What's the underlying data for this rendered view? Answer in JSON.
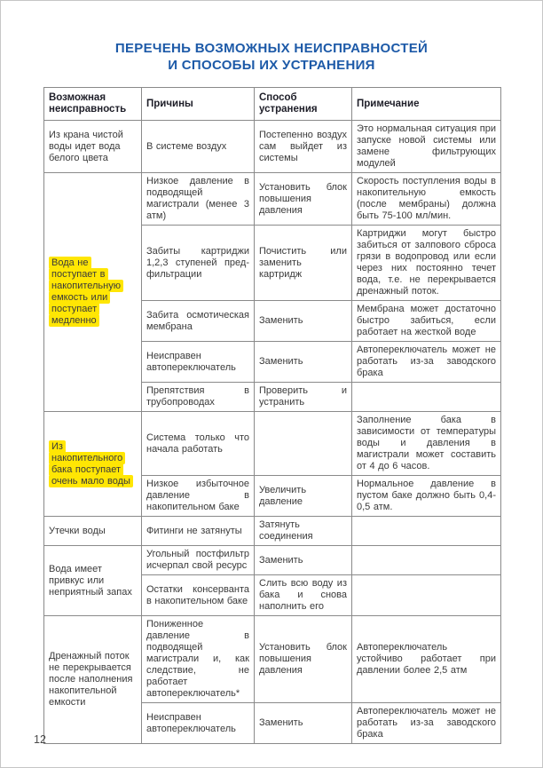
{
  "page": {
    "title_line1": "ПЕРЕЧЕНЬ ВОЗМОЖНЫХ НЕИСПРАВНОСТЕЙ",
    "title_line2": "И СПОСОБЫ ИХ УСТРАНЕНИЯ",
    "page_number": "12",
    "title_color": "#1d5aa8",
    "highlight_color": "#ffe604",
    "text_color": "#3a3a3a",
    "border_color": "#8a8a8a"
  },
  "table": {
    "headers": [
      "Возможная неисправность",
      "Причины",
      "Способ устранения",
      "Примечание"
    ],
    "groups": [
      {
        "fault": "Из крана чистой воды идет вода белого цвета",
        "highlight": false,
        "heights": [
          43
        ],
        "rows": [
          {
            "cause": "В системе воздух",
            "fix": "Постепенно воздух сам выйдет из системы",
            "note": "Это нормальная ситуация при запуске новой системы или замене фильтрующих модулей"
          }
        ]
      },
      {
        "fault": "Вода не поступает в накопительную емкость или поступает медленно",
        "highlight": true,
        "heights": [
          56,
          78,
          39,
          39,
          27
        ],
        "rows": [
          {
            "cause": "Низкое давление в подводящей магистрали (менее 3 атм)",
            "fix": "Установить блок повышения давления",
            "note": "Скорость поступления воды в накопительную емкость (после мембраны) должна быть 75-100 мл/мин."
          },
          {
            "cause": "Забиты картриджи 1,2,3 ступеней пред-фильтрации",
            "fix": "Почистить или заменить картридж",
            "note": "Картриджи могут быстро забиться от залпового сброса грязи в водопровод или если через них постоянно течет вода, т.е. не перекрывается дренажный поток."
          },
          {
            "cause": "Забита осмотическая мембрана",
            "fix": "Заменить",
            "note": "Мембрана может достаточно быстро забиться, если работает на жесткой воде"
          },
          {
            "cause": "Неисправен автопереключатель",
            "fix": "Заменить",
            "note": "Автопереключатель может не работать из-за заводского брака"
          },
          {
            "cause": "Препятствия в трубопроводах",
            "fix": "Проверить и устранить",
            "note": ""
          }
        ]
      },
      {
        "fault": "Из накопительного бака поступает очень мало воды",
        "highlight": true,
        "heights": [
          53,
          44
        ],
        "rows": [
          {
            "cause": "Система только что начала работать",
            "fix": "",
            "note": "Заполнение бака в зависимости от температуры воды и давления в магистрали может составить от 4 до 6 часов."
          },
          {
            "cause": "Низкое избыточное давление в накопительном баке",
            "fix": "Увеличить давление",
            "note": "Нормальное давление в пустом баке должно быть 0,4-0,5 атм."
          }
        ]
      },
      {
        "fault": "Утечки воды",
        "highlight": false,
        "heights": [
          27
        ],
        "rows": [
          {
            "cause": "Фитинги не затянуты",
            "fix": "Затянуть соединения",
            "note": ""
          }
        ]
      },
      {
        "fault": "Вода имеет привкус или неприятный запах",
        "highlight": false,
        "heights": [
          33,
          38
        ],
        "rows": [
          {
            "cause": "Угольный постфильтр исчерпал свой ресурс",
            "fix": "Заменить",
            "note": ""
          },
          {
            "cause": "Остатки консерванта в накопительном баке",
            "fix": "Слить всю воду из бака и снова наполнить его",
            "note": ""
          }
        ]
      },
      {
        "fault": "Дренажный поток не перекрывается после наполнения накопительной емкости",
        "highlight": false,
        "heights": [
          68,
          40
        ],
        "rows": [
          {
            "cause": "Пониженное давление в подводящей магистрали и, как следствие, не работает автопереключатель*",
            "fix": "Установить блок повышения давления",
            "note": "Автопереключатель устойчиво работает при давлении более 2,5 атм"
          },
          {
            "cause": "Неисправен автопереключатель",
            "fix": "Заменить",
            "note": "Автопереключатель может не работать из-за заводского брака"
          }
        ]
      }
    ]
  }
}
